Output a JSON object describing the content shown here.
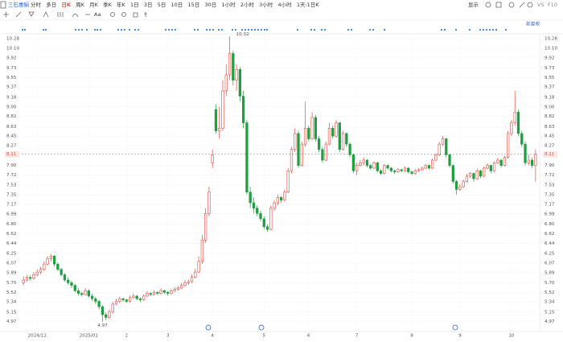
{
  "toolbar": {
    "stock": "三石惠娟",
    "periods": [
      "分时",
      "多日",
      "日K",
      "周K",
      "月K",
      "季K",
      "年K",
      "1日",
      "3日",
      "5日",
      "10日",
      "15日",
      "30日",
      "1小时",
      "2小时",
      "3小时",
      "4小时",
      "1天:1日K"
    ],
    "active": 2,
    "right": [
      "显示",
      "VS",
      "F10"
    ],
    "text_tool": "Aa"
  },
  "chart_data": {
    "type": "candlestick",
    "adjust_label": "前复权",
    "up_color": "#e5483f",
    "down_color": "#1f9e3f",
    "grid": true,
    "ylim": [
      4.89,
      10.37
    ],
    "yticks": [
      10.28,
      {
        "value": 10.1,
        "label": "10.10"
      },
      9.92,
      9.73,
      9.55,
      9.37,
      9.18,
      {
        "value": 9,
        "label": "9.00"
      },
      8.82,
      8.63,
      8.45,
      8.27,
      {
        "value": 7.9,
        "label": "7.90"
      },
      7.72,
      7.53,
      7.35,
      7.17,
      6.99,
      {
        "value": 6.8,
        "label": "6.80"
      },
      6.62,
      6.44,
      6.25,
      6.07,
      5.89,
      {
        "value": 5.7,
        "label": "5.70"
      },
      5.52,
      5.34,
      5.15,
      4.97
    ],
    "xticks": [
      {
        "value": 4,
        "label": "2024/12"
      },
      {
        "value": 19,
        "label": "2025/01"
      },
      {
        "value": 30,
        "label": "2"
      },
      {
        "value": 42,
        "label": "3"
      },
      {
        "value": 55,
        "label": "4"
      },
      {
        "value": 70,
        "label": "5"
      },
      {
        "value": 83,
        "label": "6"
      },
      {
        "value": 97,
        "label": "7"
      },
      {
        "value": 113,
        "label": "8"
      },
      {
        "value": 127,
        "label": "9"
      },
      {
        "value": 142,
        "label": "10"
      }
    ],
    "ohlc": [
      [
        5.7,
        5.82,
        5.65,
        5.75
      ],
      [
        5.75,
        5.85,
        5.72,
        5.8
      ],
      [
        5.8,
        5.84,
        5.74,
        5.78
      ],
      [
        5.78,
        5.9,
        5.76,
        5.85
      ],
      [
        5.85,
        5.95,
        5.82,
        5.9
      ],
      [
        5.9,
        6.0,
        5.86,
        5.95
      ],
      [
        5.95,
        6.1,
        5.92,
        6.05
      ],
      [
        6.05,
        6.2,
        6.02,
        6.15
      ],
      [
        6.15,
        6.24,
        6.1,
        6.2
      ],
      [
        6.2,
        6.22,
        6.0,
        6.05
      ],
      [
        6.05,
        6.08,
        5.92,
        5.95
      ],
      [
        5.95,
        5.98,
        5.82,
        5.85
      ],
      [
        5.85,
        5.88,
        5.72,
        5.75
      ],
      [
        5.75,
        5.8,
        5.66,
        5.7
      ],
      [
        5.7,
        5.74,
        5.6,
        5.65
      ],
      [
        5.65,
        5.68,
        5.52,
        5.55
      ],
      [
        5.55,
        5.6,
        5.46,
        5.5
      ],
      [
        5.5,
        5.53,
        5.44,
        5.48
      ],
      [
        5.48,
        5.6,
        5.46,
        5.55
      ],
      [
        5.55,
        5.58,
        5.42,
        5.45
      ],
      [
        5.45,
        5.5,
        5.36,
        5.4
      ],
      [
        5.4,
        5.44,
        5.3,
        5.35
      ],
      [
        5.35,
        5.38,
        5.2,
        5.25
      ],
      [
        5.25,
        5.28,
        4.97,
        5.1
      ],
      [
        5.1,
        5.14,
        5.0,
        5.05
      ],
      [
        5.05,
        5.2,
        5.02,
        5.15
      ],
      [
        5.15,
        5.34,
        5.12,
        5.3
      ],
      [
        5.3,
        5.4,
        5.28,
        5.35
      ],
      [
        5.35,
        5.44,
        5.32,
        5.4
      ],
      [
        5.4,
        5.42,
        5.34,
        5.38
      ],
      [
        5.38,
        5.4,
        5.32,
        5.35
      ],
      [
        5.35,
        5.46,
        5.33,
        5.42
      ],
      [
        5.42,
        5.5,
        5.4,
        5.45
      ],
      [
        5.45,
        5.47,
        5.37,
        5.4
      ],
      [
        5.4,
        5.42,
        5.34,
        5.38
      ],
      [
        5.38,
        5.48,
        5.36,
        5.45
      ],
      [
        5.45,
        5.54,
        5.43,
        5.5
      ],
      [
        5.5,
        5.52,
        5.45,
        5.48
      ],
      [
        5.48,
        5.56,
        5.46,
        5.52
      ],
      [
        5.52,
        5.54,
        5.47,
        5.5
      ],
      [
        5.5,
        5.6,
        5.48,
        5.55
      ],
      [
        5.55,
        5.57,
        5.49,
        5.52
      ],
      [
        5.52,
        5.54,
        5.46,
        5.5
      ],
      [
        5.5,
        5.58,
        5.48,
        5.55
      ],
      [
        5.55,
        5.62,
        5.53,
        5.58
      ],
      [
        5.58,
        5.64,
        5.55,
        5.6
      ],
      [
        5.6,
        5.7,
        5.58,
        5.65
      ],
      [
        5.65,
        5.75,
        5.62,
        5.7
      ],
      [
        5.7,
        5.76,
        5.66,
        5.72
      ],
      [
        5.72,
        5.86,
        5.7,
        5.8
      ],
      [
        5.8,
        5.96,
        5.78,
        5.9
      ],
      [
        5.9,
        6.2,
        5.88,
        6.1
      ],
      [
        6.1,
        6.6,
        6.05,
        6.5
      ],
      [
        6.5,
        7.1,
        6.45,
        7.0
      ],
      [
        7.0,
        7.5,
        6.95,
        7.4
      ],
      [
        7.95,
        8.2,
        7.85,
        8.1
      ],
      [
        8.95,
        9.05,
        8.5,
        8.55
      ],
      [
        8.55,
        9.0,
        8.4,
        8.6
      ],
      [
        8.6,
        9.5,
        8.55,
        9.3
      ],
      [
        9.3,
        9.8,
        9.2,
        9.6
      ],
      [
        9.6,
        10.32,
        9.5,
        10.0
      ],
      [
        10.0,
        10.05,
        9.4,
        9.5
      ],
      [
        9.5,
        9.8,
        9.3,
        9.7
      ],
      [
        9.7,
        9.75,
        9.1,
        9.2
      ],
      [
        9.2,
        9.3,
        8.6,
        8.7
      ],
      [
        8.7,
        8.75,
        7.35,
        7.4
      ],
      [
        7.4,
        7.5,
        7.1,
        7.2
      ],
      [
        7.2,
        7.3,
        7.0,
        7.1
      ],
      [
        7.1,
        7.15,
        6.95,
        7.0
      ],
      [
        7.0,
        7.05,
        6.85,
        6.9
      ],
      [
        6.9,
        6.95,
        6.7,
        6.75
      ],
      [
        6.75,
        6.8,
        6.65,
        6.7
      ],
      [
        6.7,
        7.15,
        6.68,
        7.1
      ],
      [
        7.1,
        7.25,
        7.05,
        7.2
      ],
      [
        7.2,
        7.35,
        7.15,
        7.3
      ],
      [
        7.3,
        7.33,
        7.2,
        7.25
      ],
      [
        7.25,
        7.45,
        7.22,
        7.4
      ],
      [
        7.4,
        7.85,
        7.38,
        7.8
      ],
      [
        7.8,
        8.25,
        7.75,
        8.2
      ],
      [
        8.2,
        8.6,
        8.15,
        8.5
      ],
      [
        8.5,
        8.55,
        7.85,
        7.9
      ],
      [
        7.9,
        8.35,
        7.88,
        8.3
      ],
      [
        8.3,
        9.1,
        8.25,
        8.6
      ],
      [
        8.6,
        8.65,
        8.35,
        8.4
      ],
      [
        8.4,
        8.9,
        8.38,
        8.8
      ],
      [
        8.8,
        8.85,
        8.35,
        8.4
      ],
      [
        8.4,
        8.45,
        8.15,
        8.2
      ],
      [
        8.2,
        8.25,
        7.95,
        8.0
      ],
      [
        8.0,
        8.35,
        7.98,
        8.3
      ],
      [
        8.3,
        8.7,
        8.28,
        8.6
      ],
      [
        8.6,
        8.65,
        8.4,
        8.45
      ],
      [
        8.45,
        8.75,
        8.42,
        8.7
      ],
      [
        8.7,
        8.72,
        8.15,
        8.2
      ],
      [
        8.2,
        8.55,
        8.18,
        8.5
      ],
      [
        8.5,
        8.52,
        8.25,
        8.3
      ],
      [
        8.3,
        8.33,
        8.05,
        8.1
      ],
      [
        8.1,
        8.12,
        7.75,
        7.8
      ],
      [
        7.8,
        7.95,
        7.72,
        7.9
      ],
      [
        7.9,
        8.0,
        7.88,
        7.95
      ],
      [
        7.95,
        8.05,
        7.9,
        8.0
      ],
      [
        8.0,
        8.02,
        7.86,
        7.9
      ],
      [
        7.9,
        7.93,
        7.82,
        7.85
      ],
      [
        7.85,
        7.98,
        7.83,
        7.95
      ],
      [
        7.95,
        7.97,
        7.77,
        7.8
      ],
      [
        7.8,
        7.83,
        7.72,
        7.75
      ],
      [
        7.75,
        7.93,
        7.73,
        7.9
      ],
      [
        7.9,
        7.92,
        7.82,
        7.85
      ],
      [
        7.85,
        7.87,
        7.77,
        7.8
      ],
      [
        7.8,
        7.82,
        7.74,
        7.78
      ],
      [
        7.78,
        7.85,
        7.76,
        7.82
      ],
      [
        7.82,
        7.84,
        7.77,
        7.8
      ],
      [
        7.8,
        7.88,
        7.78,
        7.85
      ],
      [
        7.85,
        7.87,
        7.75,
        7.78
      ],
      [
        7.78,
        7.8,
        7.72,
        7.75
      ],
      [
        7.75,
        7.83,
        7.73,
        7.8
      ],
      [
        7.8,
        7.85,
        7.78,
        7.82
      ],
      [
        7.82,
        7.88,
        7.8,
        7.85
      ],
      [
        7.85,
        7.93,
        7.83,
        7.9
      ],
      [
        7.9,
        7.92,
        7.82,
        7.85
      ],
      [
        7.85,
        8.03,
        7.83,
        8.0
      ],
      [
        8.0,
        8.13,
        7.98,
        8.1
      ],
      [
        8.1,
        8.34,
        8.08,
        8.3
      ],
      [
        8.3,
        8.45,
        8.27,
        8.4
      ],
      [
        8.4,
        8.42,
        8.05,
        8.1
      ],
      [
        8.1,
        8.12,
        7.86,
        7.9
      ],
      [
        7.9,
        7.92,
        7.56,
        7.6
      ],
      [
        7.6,
        7.63,
        7.35,
        7.45
      ],
      [
        7.45,
        7.55,
        7.42,
        7.5
      ],
      [
        7.5,
        7.64,
        7.48,
        7.6
      ],
      [
        7.6,
        7.74,
        7.58,
        7.7
      ],
      [
        7.7,
        7.78,
        7.66,
        7.75
      ],
      [
        7.75,
        7.77,
        7.6,
        7.65
      ],
      [
        7.65,
        7.84,
        7.63,
        7.8
      ],
      [
        7.8,
        7.82,
        7.66,
        7.7
      ],
      [
        7.7,
        7.88,
        7.68,
        7.85
      ],
      [
        7.85,
        7.94,
        7.83,
        7.9
      ],
      [
        7.9,
        7.92,
        7.76,
        7.8
      ],
      [
        7.8,
        7.98,
        7.78,
        7.95
      ],
      [
        7.95,
        8.04,
        7.93,
        8.0
      ],
      [
        8.0,
        8.02,
        7.86,
        7.9
      ],
      [
        7.9,
        8.08,
        7.88,
        8.05
      ],
      [
        8.05,
        8.55,
        8.03,
        8.5
      ],
      [
        8.5,
        8.75,
        8.45,
        8.7
      ],
      [
        8.7,
        9.3,
        8.65,
        8.9
      ],
      [
        8.9,
        8.95,
        8.45,
        8.5
      ],
      [
        8.5,
        8.55,
        8.25,
        8.3
      ],
      [
        8.3,
        8.35,
        7.9,
        7.95
      ],
      [
        7.95,
        8.1,
        7.9,
        8.0
      ],
      [
        8.0,
        8.05,
        7.85,
        7.9
      ],
      [
        7.9,
        8.2,
        7.6,
        8.11
      ]
    ]
  }
}
